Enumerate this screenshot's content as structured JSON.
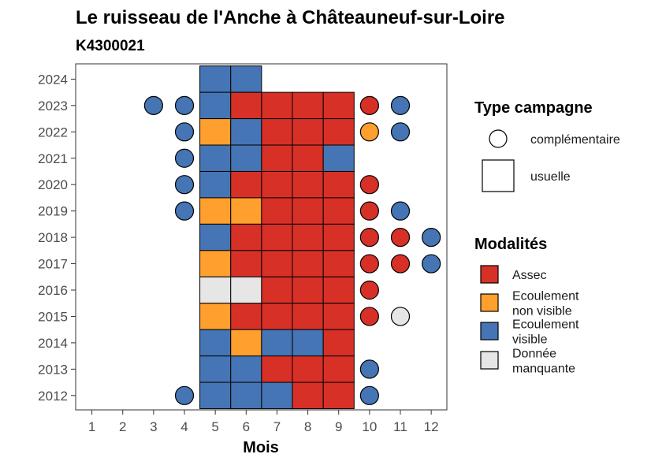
{
  "chart_data": {
    "type": "heatmap",
    "title": "Le ruisseau de l'Anche à Châteauneuf-sur-Loire",
    "subtitle": "K4300021",
    "xlabel": "Mois",
    "ylabel": "",
    "x_ticks": [
      "1",
      "2",
      "3",
      "4",
      "5",
      "6",
      "7",
      "8",
      "9",
      "10",
      "11",
      "12"
    ],
    "y_ticks": [
      "2012",
      "2013",
      "2014",
      "2015",
      "2016",
      "2017",
      "2018",
      "2019",
      "2020",
      "2021",
      "2022",
      "2023",
      "2024"
    ],
    "grid": false,
    "colors": {
      "Assec": "#d73027",
      "Ecoulement non visible": "#fe9f2e",
      "Ecoulement visible": "#4575b4",
      "Donnée manquante": "#e6e6e6"
    },
    "legend_shape": {
      "title": "Type campagne",
      "items": [
        {
          "shape": "circle",
          "label": "complémentaire"
        },
        {
          "shape": "square",
          "label": "usuelle"
        }
      ]
    },
    "legend_modalites": {
      "title": "Modalités",
      "items": [
        {
          "key": "Assec",
          "lines": [
            "Assec"
          ]
        },
        {
          "key": "Ecoulement non visible",
          "lines": [
            "Ecoulement",
            "non visible"
          ]
        },
        {
          "key": "Ecoulement visible",
          "lines": [
            "Ecoulement",
            "visible"
          ]
        },
        {
          "key": "Donnée manquante",
          "lines": [
            "Donnée",
            "manquante"
          ]
        }
      ]
    },
    "points": [
      {
        "year": 2024,
        "month": 5,
        "type": "usuelle",
        "modalite": "Ecoulement visible"
      },
      {
        "year": 2024,
        "month": 6,
        "type": "usuelle",
        "modalite": "Ecoulement visible"
      },
      {
        "year": 2023,
        "month": 3,
        "type": "complémentaire",
        "modalite": "Ecoulement visible"
      },
      {
        "year": 2023,
        "month": 4,
        "type": "complémentaire",
        "modalite": "Ecoulement visible"
      },
      {
        "year": 2023,
        "month": 5,
        "type": "usuelle",
        "modalite": "Ecoulement visible"
      },
      {
        "year": 2023,
        "month": 6,
        "type": "usuelle",
        "modalite": "Assec"
      },
      {
        "year": 2023,
        "month": 7,
        "type": "usuelle",
        "modalite": "Assec"
      },
      {
        "year": 2023,
        "month": 8,
        "type": "usuelle",
        "modalite": "Assec"
      },
      {
        "year": 2023,
        "month": 9,
        "type": "usuelle",
        "modalite": "Assec"
      },
      {
        "year": 2023,
        "month": 10,
        "type": "complémentaire",
        "modalite": "Assec"
      },
      {
        "year": 2023,
        "month": 11,
        "type": "complémentaire",
        "modalite": "Ecoulement visible"
      },
      {
        "year": 2022,
        "month": 4,
        "type": "complémentaire",
        "modalite": "Ecoulement visible"
      },
      {
        "year": 2022,
        "month": 5,
        "type": "usuelle",
        "modalite": "Ecoulement non visible"
      },
      {
        "year": 2022,
        "month": 6,
        "type": "usuelle",
        "modalite": "Ecoulement visible"
      },
      {
        "year": 2022,
        "month": 7,
        "type": "usuelle",
        "modalite": "Assec"
      },
      {
        "year": 2022,
        "month": 8,
        "type": "usuelle",
        "modalite": "Assec"
      },
      {
        "year": 2022,
        "month": 9,
        "type": "usuelle",
        "modalite": "Assec"
      },
      {
        "year": 2022,
        "month": 10,
        "type": "complémentaire",
        "modalite": "Ecoulement non visible"
      },
      {
        "year": 2022,
        "month": 11,
        "type": "complémentaire",
        "modalite": "Ecoulement visible"
      },
      {
        "year": 2021,
        "month": 4,
        "type": "complémentaire",
        "modalite": "Ecoulement visible"
      },
      {
        "year": 2021,
        "month": 5,
        "type": "usuelle",
        "modalite": "Ecoulement visible"
      },
      {
        "year": 2021,
        "month": 6,
        "type": "usuelle",
        "modalite": "Ecoulement visible"
      },
      {
        "year": 2021,
        "month": 7,
        "type": "usuelle",
        "modalite": "Assec"
      },
      {
        "year": 2021,
        "month": 8,
        "type": "usuelle",
        "modalite": "Assec"
      },
      {
        "year": 2021,
        "month": 9,
        "type": "usuelle",
        "modalite": "Ecoulement visible"
      },
      {
        "year": 2020,
        "month": 4,
        "type": "complémentaire",
        "modalite": "Ecoulement visible"
      },
      {
        "year": 2020,
        "month": 5,
        "type": "usuelle",
        "modalite": "Ecoulement visible"
      },
      {
        "year": 2020,
        "month": 6,
        "type": "usuelle",
        "modalite": "Assec"
      },
      {
        "year": 2020,
        "month": 7,
        "type": "usuelle",
        "modalite": "Assec"
      },
      {
        "year": 2020,
        "month": 8,
        "type": "usuelle",
        "modalite": "Assec"
      },
      {
        "year": 2020,
        "month": 9,
        "type": "usuelle",
        "modalite": "Assec"
      },
      {
        "year": 2020,
        "month": 10,
        "type": "complémentaire",
        "modalite": "Assec"
      },
      {
        "year": 2019,
        "month": 4,
        "type": "complémentaire",
        "modalite": "Ecoulement visible"
      },
      {
        "year": 2019,
        "month": 5,
        "type": "usuelle",
        "modalite": "Ecoulement non visible"
      },
      {
        "year": 2019,
        "month": 6,
        "type": "usuelle",
        "modalite": "Ecoulement non visible"
      },
      {
        "year": 2019,
        "month": 7,
        "type": "usuelle",
        "modalite": "Assec"
      },
      {
        "year": 2019,
        "month": 8,
        "type": "usuelle",
        "modalite": "Assec"
      },
      {
        "year": 2019,
        "month": 9,
        "type": "usuelle",
        "modalite": "Assec"
      },
      {
        "year": 2019,
        "month": 10,
        "type": "complémentaire",
        "modalite": "Assec"
      },
      {
        "year": 2019,
        "month": 11,
        "type": "complémentaire",
        "modalite": "Ecoulement visible"
      },
      {
        "year": 2018,
        "month": 5,
        "type": "usuelle",
        "modalite": "Ecoulement visible"
      },
      {
        "year": 2018,
        "month": 6,
        "type": "usuelle",
        "modalite": "Assec"
      },
      {
        "year": 2018,
        "month": 7,
        "type": "usuelle",
        "modalite": "Assec"
      },
      {
        "year": 2018,
        "month": 8,
        "type": "usuelle",
        "modalite": "Assec"
      },
      {
        "year": 2018,
        "month": 9,
        "type": "usuelle",
        "modalite": "Assec"
      },
      {
        "year": 2018,
        "month": 10,
        "type": "complémentaire",
        "modalite": "Assec"
      },
      {
        "year": 2018,
        "month": 11,
        "type": "complémentaire",
        "modalite": "Assec"
      },
      {
        "year": 2018,
        "month": 12,
        "type": "complémentaire",
        "modalite": "Ecoulement visible"
      },
      {
        "year": 2017,
        "month": 5,
        "type": "usuelle",
        "modalite": "Ecoulement non visible"
      },
      {
        "year": 2017,
        "month": 6,
        "type": "usuelle",
        "modalite": "Assec"
      },
      {
        "year": 2017,
        "month": 7,
        "type": "usuelle",
        "modalite": "Assec"
      },
      {
        "year": 2017,
        "month": 8,
        "type": "usuelle",
        "modalite": "Assec"
      },
      {
        "year": 2017,
        "month": 9,
        "type": "usuelle",
        "modalite": "Assec"
      },
      {
        "year": 2017,
        "month": 10,
        "type": "complémentaire",
        "modalite": "Assec"
      },
      {
        "year": 2017,
        "month": 11,
        "type": "complémentaire",
        "modalite": "Assec"
      },
      {
        "year": 2017,
        "month": 12,
        "type": "complémentaire",
        "modalite": "Ecoulement visible"
      },
      {
        "year": 2016,
        "month": 5,
        "type": "usuelle",
        "modalite": "Donnée manquante"
      },
      {
        "year": 2016,
        "month": 6,
        "type": "usuelle",
        "modalite": "Donnée manquante"
      },
      {
        "year": 2016,
        "month": 7,
        "type": "usuelle",
        "modalite": "Assec"
      },
      {
        "year": 2016,
        "month": 8,
        "type": "usuelle",
        "modalite": "Assec"
      },
      {
        "year": 2016,
        "month": 9,
        "type": "usuelle",
        "modalite": "Assec"
      },
      {
        "year": 2016,
        "month": 10,
        "type": "complémentaire",
        "modalite": "Assec"
      },
      {
        "year": 2015,
        "month": 5,
        "type": "usuelle",
        "modalite": "Ecoulement non visible"
      },
      {
        "year": 2015,
        "month": 6,
        "type": "usuelle",
        "modalite": "Assec"
      },
      {
        "year": 2015,
        "month": 7,
        "type": "usuelle",
        "modalite": "Assec"
      },
      {
        "year": 2015,
        "month": 8,
        "type": "usuelle",
        "modalite": "Assec"
      },
      {
        "year": 2015,
        "month": 9,
        "type": "usuelle",
        "modalite": "Assec"
      },
      {
        "year": 2015,
        "month": 10,
        "type": "complémentaire",
        "modalite": "Assec"
      },
      {
        "year": 2015,
        "month": 11,
        "type": "complémentaire",
        "modalite": "Donnée manquante"
      },
      {
        "year": 2014,
        "month": 5,
        "type": "usuelle",
        "modalite": "Ecoulement visible"
      },
      {
        "year": 2014,
        "month": 6,
        "type": "usuelle",
        "modalite": "Ecoulement non visible"
      },
      {
        "year": 2014,
        "month": 7,
        "type": "usuelle",
        "modalite": "Ecoulement visible"
      },
      {
        "year": 2014,
        "month": 8,
        "type": "usuelle",
        "modalite": "Ecoulement visible"
      },
      {
        "year": 2014,
        "month": 9,
        "type": "usuelle",
        "modalite": "Assec"
      },
      {
        "year": 2013,
        "month": 5,
        "type": "usuelle",
        "modalite": "Ecoulement visible"
      },
      {
        "year": 2013,
        "month": 6,
        "type": "usuelle",
        "modalite": "Ecoulement visible"
      },
      {
        "year": 2013,
        "month": 7,
        "type": "usuelle",
        "modalite": "Assec"
      },
      {
        "year": 2013,
        "month": 8,
        "type": "usuelle",
        "modalite": "Assec"
      },
      {
        "year": 2013,
        "month": 9,
        "type": "usuelle",
        "modalite": "Assec"
      },
      {
        "year": 2013,
        "month": 10,
        "type": "complémentaire",
        "modalite": "Ecoulement visible"
      },
      {
        "year": 2012,
        "month": 4,
        "type": "complémentaire",
        "modalite": "Ecoulement visible"
      },
      {
        "year": 2012,
        "month": 5,
        "type": "usuelle",
        "modalite": "Ecoulement visible"
      },
      {
        "year": 2012,
        "month": 6,
        "type": "usuelle",
        "modalite": "Ecoulement visible"
      },
      {
        "year": 2012,
        "month": 7,
        "type": "usuelle",
        "modalite": "Ecoulement visible"
      },
      {
        "year": 2012,
        "month": 8,
        "type": "usuelle",
        "modalite": "Assec"
      },
      {
        "year": 2012,
        "month": 9,
        "type": "usuelle",
        "modalite": "Assec"
      },
      {
        "year": 2012,
        "month": 10,
        "type": "complémentaire",
        "modalite": "Ecoulement visible"
      }
    ]
  }
}
